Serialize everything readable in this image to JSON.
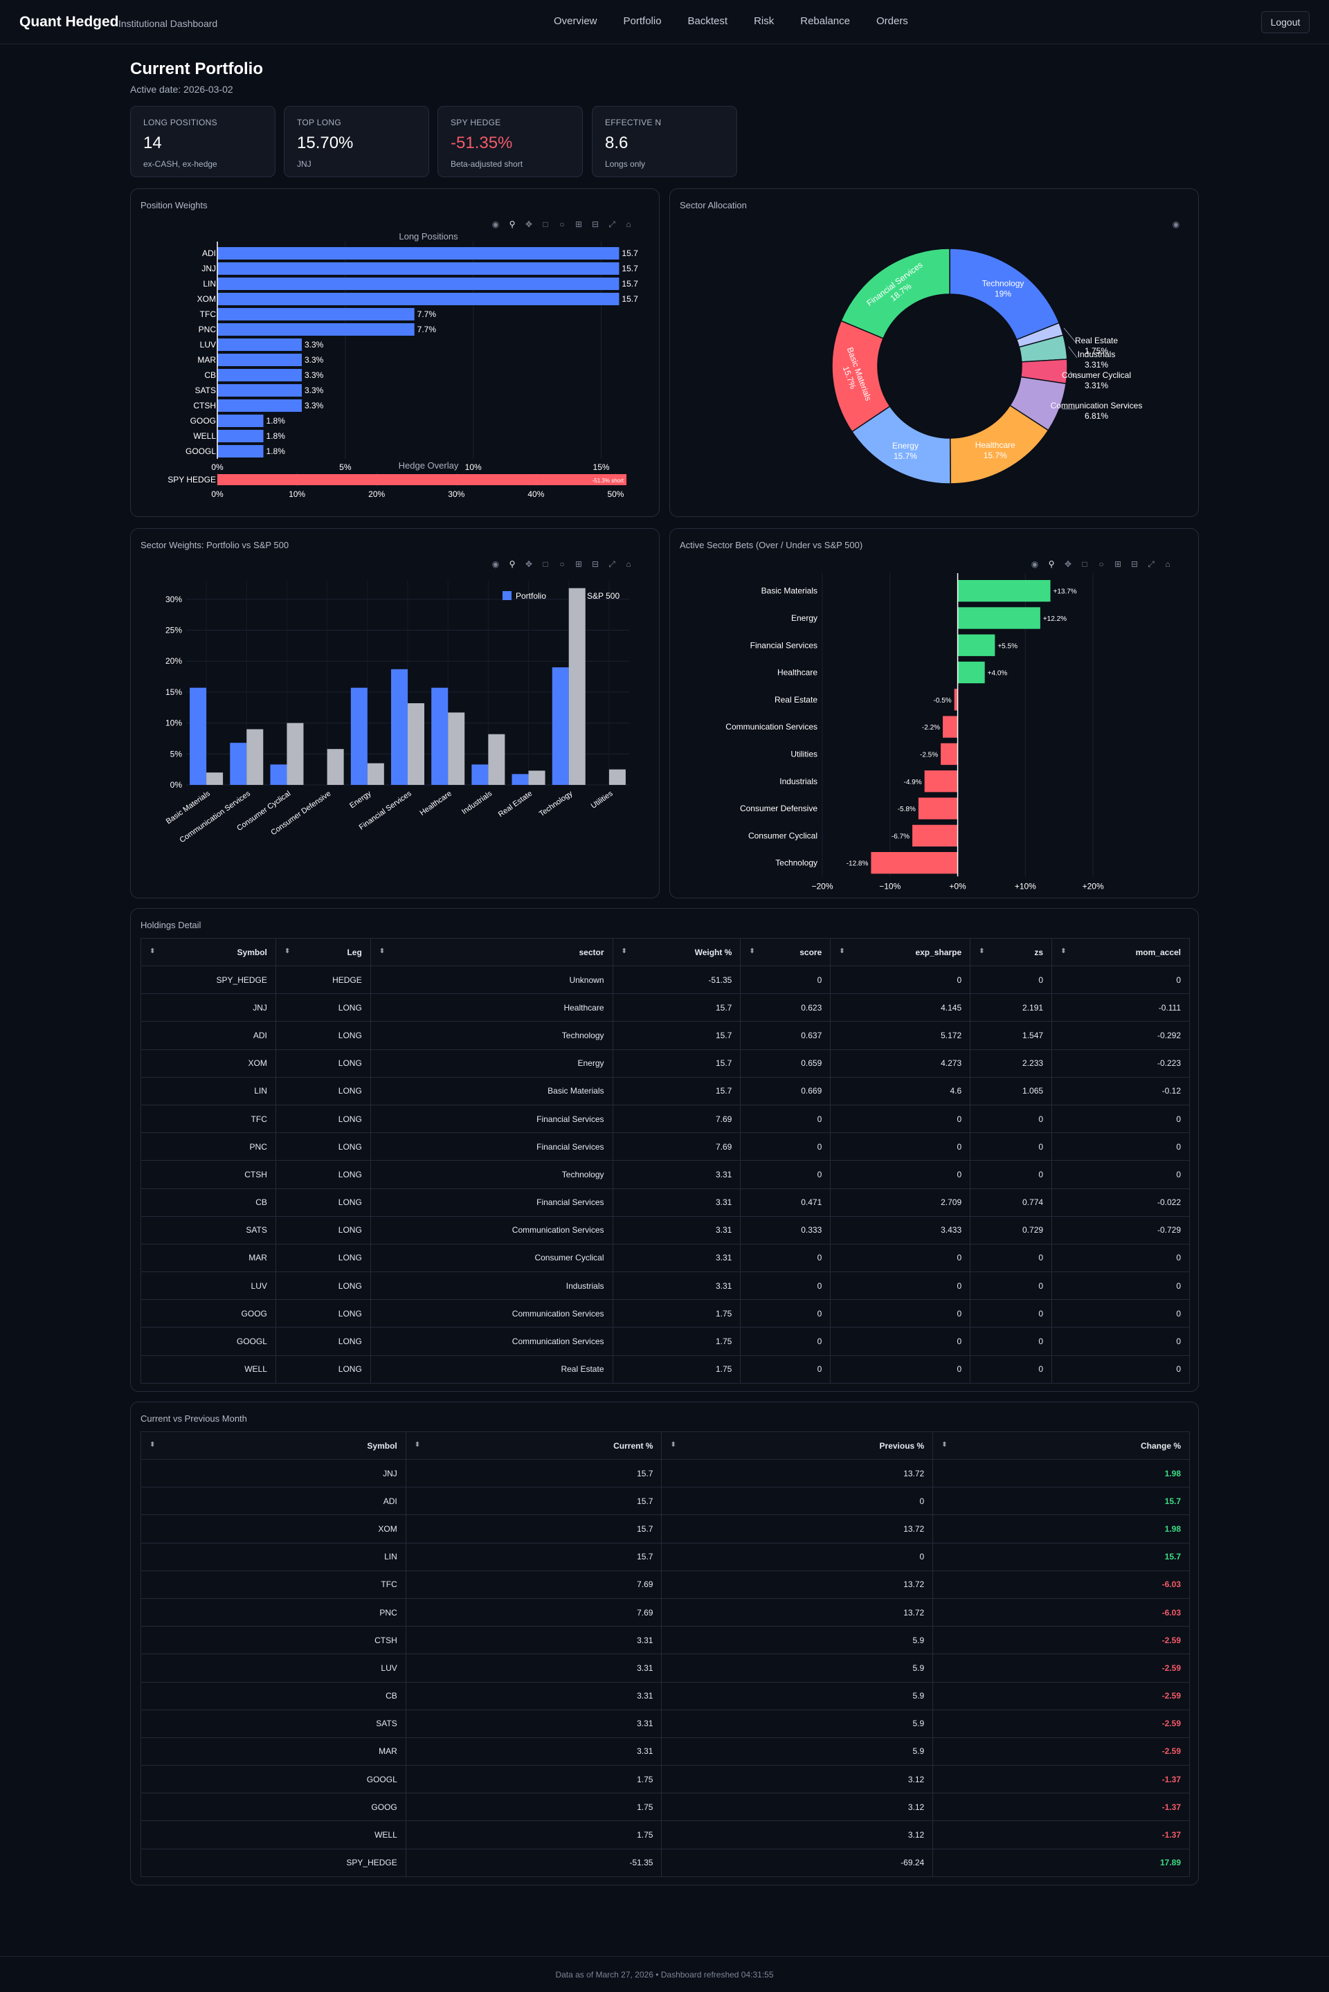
{
  "nav": {
    "brand": "Quant Hedged",
    "subtitle": "Institutional Dashboard",
    "links": [
      "Overview",
      "Portfolio",
      "Backtest",
      "Risk",
      "Rebalance",
      "Orders"
    ],
    "logout": "Logout"
  },
  "page": {
    "title": "Current Portfolio",
    "active_date": "Active date: 2026-03-02"
  },
  "kpis": [
    {
      "label": "LONG POSITIONS",
      "value": "14",
      "sub": "ex-CASH, ex-hedge"
    },
    {
      "label": "TOP LONG",
      "value": "15.70%",
      "sub": "JNJ"
    },
    {
      "label": "SPY HEDGE",
      "value": "-51.35%",
      "sub": "Beta-adjusted short"
    },
    {
      "label": "EFFECTIVE N",
      "value": "8.6",
      "sub": "Longs only"
    }
  ],
  "colors": {
    "blue": "#4c7dff",
    "green": "#3ddc84",
    "red": "#ff5c66",
    "gray": "#b5b8c0"
  },
  "panels": {
    "weights_title": "Position Weights",
    "sector_alloc_title": "Sector Allocation",
    "sector_weights_title": "Sector Weights: Portfolio vs S&P 500",
    "active_bets_title": "Active Sector Bets (Over / Under vs S&P 500)",
    "holdings_title": "Holdings Detail",
    "compare_title": "Current vs Previous Month"
  },
  "chart_data": [
    {
      "type": "bar",
      "orientation": "horizontal",
      "title": "Long Positions",
      "categories": [
        "ADI",
        "JNJ",
        "LIN",
        "XOM",
        "TFC",
        "PNC",
        "LUV",
        "MAR",
        "CB",
        "SATS",
        "CTSH",
        "GOOG",
        "WELL",
        "GOOGL"
      ],
      "values": [
        15.7,
        15.7,
        15.7,
        15.7,
        7.7,
        7.7,
        3.3,
        3.3,
        3.3,
        3.3,
        3.3,
        1.8,
        1.8,
        1.8
      ],
      "labels": [
        "15.7",
        "15.7",
        "15.7",
        "15.7",
        "7.7%",
        "7.7%",
        "3.3%",
        "3.3%",
        "3.3%",
        "3.3%",
        "3.3%",
        "1.8%",
        "1.8%",
        "1.8%"
      ],
      "xlim": [
        0,
        16.5
      ],
      "xticks": [
        "0%",
        "5%",
        "10%",
        "15%"
      ]
    },
    {
      "type": "bar",
      "orientation": "horizontal",
      "title": "Hedge Overlay",
      "categories": [
        "SPY HEDGE"
      ],
      "values": [
        51.35
      ],
      "labels": [
        "-51.3% short"
      ],
      "xlim": [
        0,
        53
      ],
      "xticks": [
        "0%",
        "10%",
        "20%",
        "30%",
        "40%",
        "50%"
      ]
    },
    {
      "type": "pie",
      "hole": true,
      "labels": [
        "Technology",
        "Real Estate",
        "Industrials",
        "Consumer Cyclical",
        "Communication Services",
        "Healthcare",
        "Energy",
        "Basic Materials",
        "Financial Services"
      ],
      "values": [
        19,
        1.75,
        3.31,
        3.31,
        6.81,
        15.7,
        15.7,
        15.7,
        18.7
      ],
      "text": [
        "19%",
        "1.75%",
        "3.31%",
        "3.31%",
        "6.81%",
        "15.7%",
        "15.7%",
        "15.7%",
        "18.7%"
      ],
      "colors": [
        "#4c7dff",
        "#b8c8ff",
        "#7fcfc3",
        "#f4517a",
        "#b49ddc",
        "#ffad47",
        "#7fb0ff",
        "#ff5c66",
        "#3ddc84"
      ]
    },
    {
      "type": "bar",
      "categories": [
        "Basic Materials",
        "Communication Services",
        "Consumer Cyclical",
        "Consumer Defensive",
        "Energy",
        "Financial Services",
        "Healthcare",
        "Industrials",
        "Real Estate",
        "Technology",
        "Utilities"
      ],
      "series": [
        {
          "name": "Portfolio",
          "values": [
            15.7,
            6.8,
            3.3,
            0,
            15.7,
            18.7,
            15.7,
            3.3,
            1.75,
            19,
            0
          ]
        },
        {
          "name": "S&P 500",
          "values": [
            2.0,
            9.0,
            10.0,
            5.8,
            3.5,
            13.2,
            11.7,
            8.2,
            2.3,
            31.8,
            2.5
          ]
        }
      ],
      "ylim": [
        0,
        33
      ],
      "yticks": [
        "0%",
        "5%",
        "10%",
        "15%",
        "20%",
        "25%",
        "30%"
      ],
      "legend": "top-right"
    },
    {
      "type": "bar",
      "orientation": "horizontal",
      "categories": [
        "Basic Materials",
        "Energy",
        "Financial Services",
        "Healthcare",
        "Real Estate",
        "Communication Services",
        "Utilities",
        "Industrials",
        "Consumer Defensive",
        "Consumer Cyclical",
        "Technology"
      ],
      "values": [
        13.7,
        12.2,
        5.5,
        4.0,
        -0.5,
        -2.2,
        -2.5,
        -4.9,
        -5.8,
        -6.7,
        -12.8
      ],
      "labels": [
        "+13.7%",
        "+12.2%",
        "+5.5%",
        "+4.0%",
        "-0.5%",
        "-2.2%",
        "-2.5%",
        "-4.9%",
        "-5.8%",
        "-6.7%",
        "-12.8%"
      ],
      "xlim": [
        -20,
        25
      ],
      "xticks": [
        "−20%",
        "−10%",
        "+0%",
        "+10%",
        "+20%"
      ]
    }
  ],
  "holdings": {
    "columns": [
      "Symbol",
      "Leg",
      "sector",
      "Weight %",
      "score",
      "exp_sharpe",
      "zs",
      "mom_accel"
    ],
    "rows": [
      [
        "SPY_HEDGE",
        "HEDGE",
        "Unknown",
        "-51.35",
        "0",
        "0",
        "0",
        "0"
      ],
      [
        "JNJ",
        "LONG",
        "Healthcare",
        "15.7",
        "0.623",
        "4.145",
        "2.191",
        "-0.111"
      ],
      [
        "ADI",
        "LONG",
        "Technology",
        "15.7",
        "0.637",
        "5.172",
        "1.547",
        "-0.292"
      ],
      [
        "XOM",
        "LONG",
        "Energy",
        "15.7",
        "0.659",
        "4.273",
        "2.233",
        "-0.223"
      ],
      [
        "LIN",
        "LONG",
        "Basic Materials",
        "15.7",
        "0.669",
        "4.6",
        "1.065",
        "-0.12"
      ],
      [
        "TFC",
        "LONG",
        "Financial Services",
        "7.69",
        "0",
        "0",
        "0",
        "0"
      ],
      [
        "PNC",
        "LONG",
        "Financial Services",
        "7.69",
        "0",
        "0",
        "0",
        "0"
      ],
      [
        "CTSH",
        "LONG",
        "Technology",
        "3.31",
        "0",
        "0",
        "0",
        "0"
      ],
      [
        "CB",
        "LONG",
        "Financial Services",
        "3.31",
        "0.471",
        "2.709",
        "0.774",
        "-0.022"
      ],
      [
        "SATS",
        "LONG",
        "Communication Services",
        "3.31",
        "0.333",
        "3.433",
        "0.729",
        "-0.729"
      ],
      [
        "MAR",
        "LONG",
        "Consumer Cyclical",
        "3.31",
        "0",
        "0",
        "0",
        "0"
      ],
      [
        "LUV",
        "LONG",
        "Industrials",
        "3.31",
        "0",
        "0",
        "0",
        "0"
      ],
      [
        "GOOG",
        "LONG",
        "Communication Services",
        "1.75",
        "0",
        "0",
        "0",
        "0"
      ],
      [
        "GOOGL",
        "LONG",
        "Communication Services",
        "1.75",
        "0",
        "0",
        "0",
        "0"
      ],
      [
        "WELL",
        "LONG",
        "Real Estate",
        "1.75",
        "0",
        "0",
        "0",
        "0"
      ]
    ]
  },
  "compare": {
    "columns": [
      "Symbol",
      "Current %",
      "Previous %",
      "Change %"
    ],
    "rows": [
      [
        "JNJ",
        "15.7",
        "13.72",
        "1.98"
      ],
      [
        "ADI",
        "15.7",
        "0",
        "15.7"
      ],
      [
        "XOM",
        "15.7",
        "13.72",
        "1.98"
      ],
      [
        "LIN",
        "15.7",
        "0",
        "15.7"
      ],
      [
        "TFC",
        "7.69",
        "13.72",
        "-6.03"
      ],
      [
        "PNC",
        "7.69",
        "13.72",
        "-6.03"
      ],
      [
        "CTSH",
        "3.31",
        "5.9",
        "-2.59"
      ],
      [
        "LUV",
        "3.31",
        "5.9",
        "-2.59"
      ],
      [
        "CB",
        "3.31",
        "5.9",
        "-2.59"
      ],
      [
        "SATS",
        "3.31",
        "5.9",
        "-2.59"
      ],
      [
        "MAR",
        "3.31",
        "5.9",
        "-2.59"
      ],
      [
        "GOOGL",
        "1.75",
        "3.12",
        "-1.37"
      ],
      [
        "GOOG",
        "1.75",
        "3.12",
        "-1.37"
      ],
      [
        "WELL",
        "1.75",
        "3.12",
        "-1.37"
      ],
      [
        "SPY_HEDGE",
        "-51.35",
        "-69.24",
        "17.89"
      ]
    ]
  },
  "footer": "Data as of March 27, 2026 • Dashboard refreshed 04:31:55"
}
